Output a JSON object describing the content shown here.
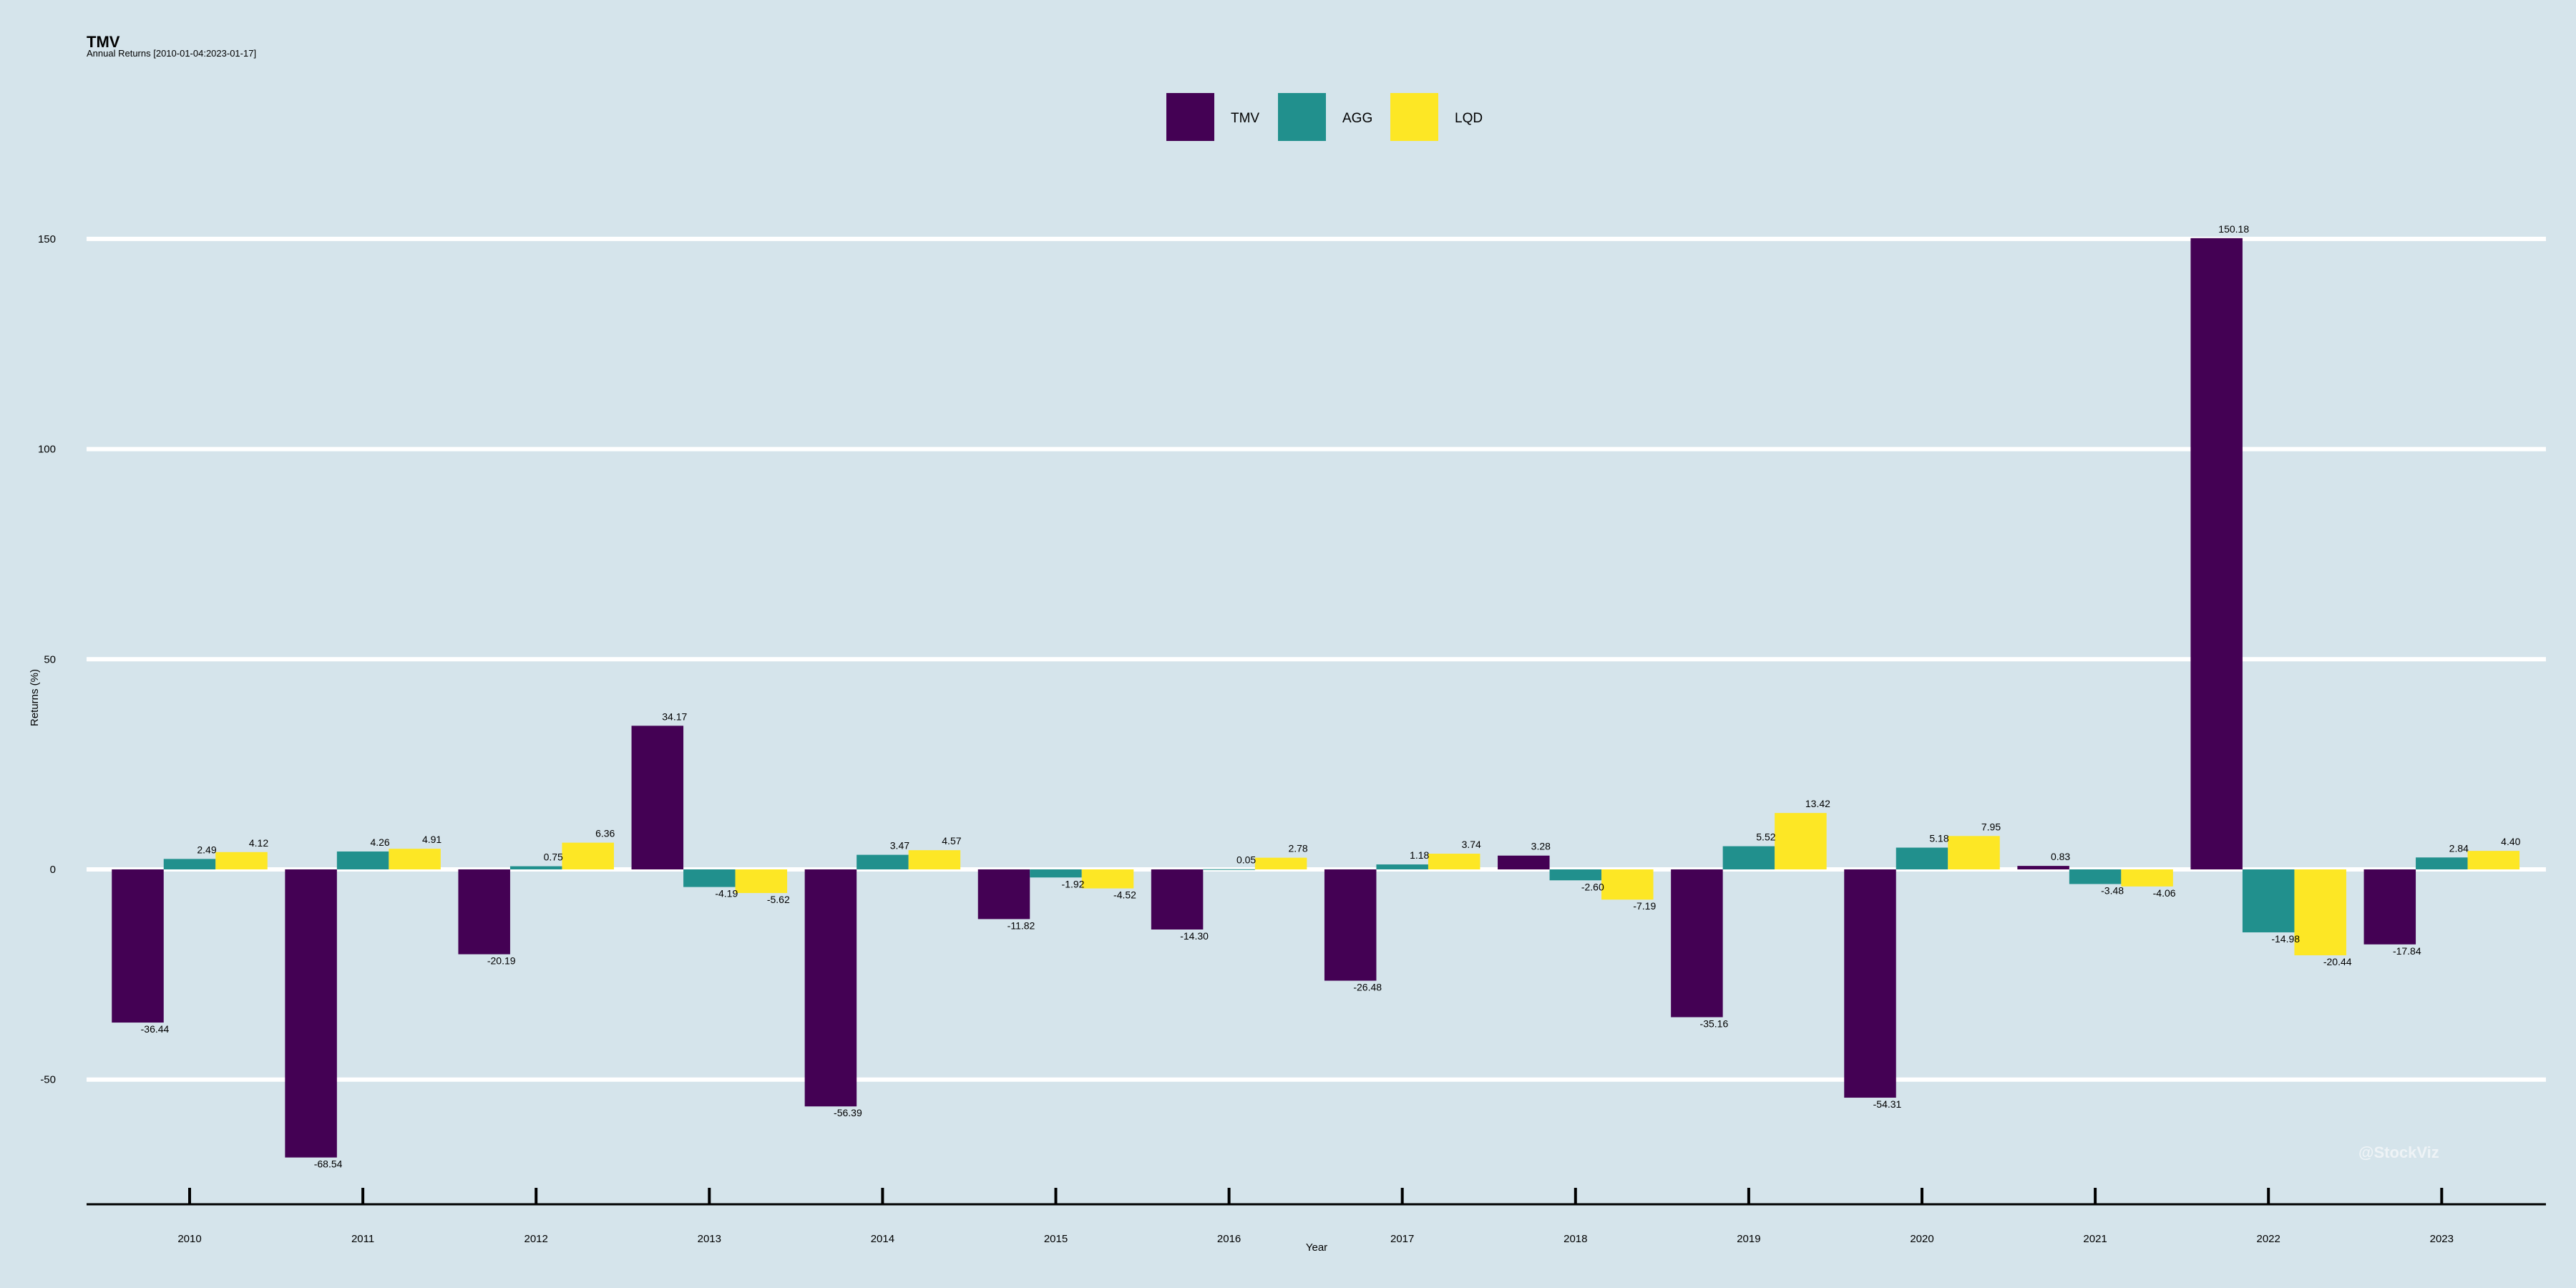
{
  "title": "TMV",
  "subtitle": "Annual Returns [2010-01-04:2023-01-17]",
  "watermark": "@StockViz",
  "chart_data": {
    "type": "bar",
    "title": "TMV",
    "subtitle": "Annual Returns [2010-01-04:2023-01-17]",
    "xlabel": "Year",
    "ylabel": "Returns (%)",
    "ylim": [
      -80,
      165
    ],
    "yticks": [
      150,
      100,
      50,
      0,
      -50
    ],
    "grid": true,
    "legend_position": "top-center",
    "categories": [
      "2010",
      "2011",
      "2012",
      "2013",
      "2014",
      "2015",
      "2016",
      "2017",
      "2018",
      "2019",
      "2020",
      "2021",
      "2022",
      "2023"
    ],
    "series": [
      {
        "name": "TMV",
        "color": "#440154",
        "values": [
          -36.44,
          -68.54,
          -20.19,
          34.17,
          -56.39,
          -11.82,
          -14.3,
          -26.48,
          3.28,
          -35.16,
          -54.31,
          0.83,
          150.18,
          -17.84
        ]
      },
      {
        "name": "AGG",
        "color": "#21908d",
        "values": [
          2.49,
          4.26,
          0.75,
          -4.19,
          3.47,
          -1.92,
          0.05,
          1.18,
          -2.6,
          5.52,
          5.18,
          -3.48,
          -14.98,
          2.84
        ]
      },
      {
        "name": "LQD",
        "color": "#fde725",
        "values": [
          4.12,
          4.91,
          6.36,
          -5.62,
          4.57,
          -4.52,
          2.78,
          3.74,
          -7.19,
          13.42,
          7.95,
          -4.06,
          -20.44,
          4.4
        ]
      }
    ]
  }
}
